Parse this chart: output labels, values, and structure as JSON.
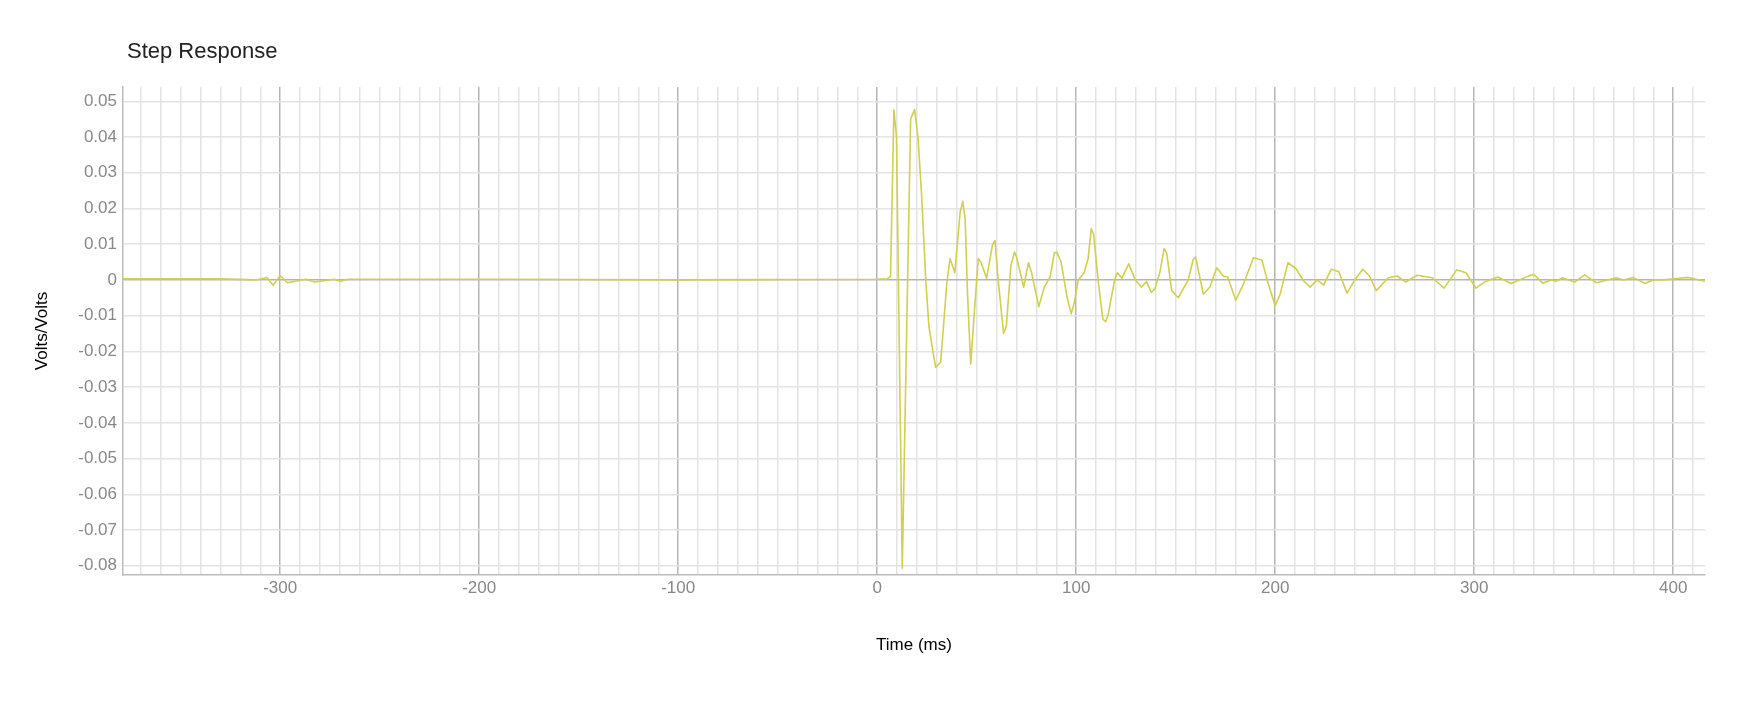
{
  "chart_data": {
    "type": "line",
    "title": "Step Response",
    "xlabel": "Time (ms)",
    "ylabel": "Volts/Volts",
    "xlim": [
      -379,
      416
    ],
    "ylim": [
      -0.0826,
      0.054
    ],
    "xticks": [
      {
        "value": -370,
        "label": null
      },
      {
        "value": -360,
        "label": null
      },
      {
        "value": -350,
        "label": null
      },
      {
        "value": -340,
        "label": null
      },
      {
        "value": -330,
        "label": null
      },
      {
        "value": -320,
        "label": null
      },
      {
        "value": -310,
        "label": null
      },
      -300,
      {
        "value": -290,
        "label": null
      },
      {
        "value": -280,
        "label": null
      },
      {
        "value": -270,
        "label": null
      },
      {
        "value": -260,
        "label": null
      },
      {
        "value": -250,
        "label": null
      },
      {
        "value": -240,
        "label": null
      },
      {
        "value": -230,
        "label": null
      },
      {
        "value": -220,
        "label": null
      },
      {
        "value": -210,
        "label": null
      },
      -200,
      {
        "value": -190,
        "label": null
      },
      {
        "value": -180,
        "label": null
      },
      {
        "value": -170,
        "label": null
      },
      {
        "value": -160,
        "label": null
      },
      {
        "value": -150,
        "label": null
      },
      {
        "value": -140,
        "label": null
      },
      {
        "value": -130,
        "label": null
      },
      {
        "value": -120,
        "label": null
      },
      {
        "value": -110,
        "label": null
      },
      -100,
      {
        "value": -90,
        "label": null
      },
      {
        "value": -80,
        "label": null
      },
      {
        "value": -70,
        "label": null
      },
      {
        "value": -60,
        "label": null
      },
      {
        "value": -50,
        "label": null
      },
      {
        "value": -40,
        "label": null
      },
      {
        "value": -30,
        "label": null
      },
      {
        "value": -20,
        "label": null
      },
      {
        "value": -10,
        "label": null
      },
      0,
      {
        "value": 10,
        "label": null
      },
      {
        "value": 20,
        "label": null
      },
      {
        "value": 30,
        "label": null
      },
      {
        "value": 40,
        "label": null
      },
      {
        "value": 50,
        "label": null
      },
      {
        "value": 60,
        "label": null
      },
      {
        "value": 70,
        "label": null
      },
      {
        "value": 80,
        "label": null
      },
      {
        "value": 90,
        "label": null
      },
      100,
      {
        "value": 110,
        "label": null
      },
      {
        "value": 120,
        "label": null
      },
      {
        "value": 130,
        "label": null
      },
      {
        "value": 140,
        "label": null
      },
      {
        "value": 150,
        "label": null
      },
      {
        "value": 160,
        "label": null
      },
      {
        "value": 170,
        "label": null
      },
      {
        "value": 180,
        "label": null
      },
      {
        "value": 190,
        "label": null
      },
      200,
      {
        "value": 210,
        "label": null
      },
      {
        "value": 220,
        "label": null
      },
      {
        "value": 230,
        "label": null
      },
      {
        "value": 240,
        "label": null
      },
      {
        "value": 250,
        "label": null
      },
      {
        "value": 260,
        "label": null
      },
      {
        "value": 270,
        "label": null
      },
      {
        "value": 280,
        "label": null
      },
      {
        "value": 290,
        "label": null
      },
      300,
      {
        "value": 310,
        "label": null
      },
      {
        "value": 320,
        "label": null
      },
      {
        "value": 330,
        "label": null
      },
      {
        "value": 340,
        "label": null
      },
      {
        "value": 350,
        "label": null
      },
      {
        "value": 360,
        "label": null
      },
      {
        "value": 370,
        "label": null
      },
      {
        "value": 380,
        "label": null
      },
      {
        "value": 390,
        "label": null
      },
      400,
      {
        "value": 410,
        "label": null
      }
    ],
    "yticks": [
      -0.08,
      -0.07,
      -0.06,
      -0.05,
      -0.04,
      -0.03,
      -0.02,
      -0.01,
      0,
      0.01,
      0.02,
      0.03,
      0.04,
      0.05
    ],
    "grid": true,
    "legend": false,
    "marker": "none",
    "line_style": "solid",
    "series": [
      {
        "color": "#d0cf4f",
        "x": [
          -379,
          -350,
          -330,
          -312,
          -306.7,
          -303.6,
          -300,
          -296.4,
          -287,
          -282.6,
          -273,
          -269.6,
          -266,
          -250,
          -200,
          -150,
          -100,
          -50,
          0,
          5,
          6.7,
          8.4,
          9.7,
          12.6,
          16.8,
          18.8,
          20.5,
          22.4,
          24.4,
          26,
          27.7,
          29.4,
          31.9,
          35,
          36.6,
          39,
          41.7,
          43,
          44.2,
          45.4,
          47,
          48.7,
          50.8,
          52.1,
          55,
          58,
          59.2,
          60.8,
          63.5,
          64.9,
          67.2,
          69,
          70,
          73.6,
          76,
          77.6,
          81.2,
          84,
          87,
          89,
          90.4,
          92.4,
          95.5,
          97.5,
          99.2,
          101,
          104,
          106,
          107.6,
          108.7,
          111,
          113.4,
          114.8,
          116,
          119.3,
          120.7,
          123,
          126.4,
          129.7,
          132.8,
          135.3,
          137.8,
          139.5,
          142,
          144.2,
          145.5,
          148,
          151.3,
          154.6,
          156.3,
          158.8,
          160,
          163.9,
          167.2,
          170.6,
          174,
          176.1,
          180.2,
          184,
          189.1,
          193.3,
          196.6,
          200,
          202.5,
          206.4,
          210.4,
          214.3,
          217.7,
          221,
          224.4,
          228.2,
          232,
          236.1,
          240,
          244,
          247.4,
          250.8,
          256.8,
          261.3,
          265.5,
          271.4,
          279,
          284.9,
          291.2,
          295.9,
          300.9,
          305.1,
          311.8,
          318.6,
          324.4,
          329.8,
          334.5,
          338.7,
          341.2,
          344.3,
          350.5,
          355.5,
          361.4,
          371.5,
          374.9,
          379.9,
          385.8,
          390,
          395,
          401.8,
          407.6,
          416
        ],
        "values": [
          0.0003,
          0.0003,
          0.0003,
          0,
          0.0007,
          -0.0015,
          0.0012,
          -0.0008,
          0.0002,
          -0.0006,
          0.0002,
          -0.0004,
          0.0002,
          0.0002,
          0.0002,
          0.0001,
          0,
          0.0001,
          0.0002,
          0.0003,
          0.001,
          0.0476,
          0.04,
          -0.0807,
          0.045,
          0.0477,
          0.04,
          0.023,
          0,
          -0.013,
          -0.019,
          -0.0245,
          -0.023,
          -0.001,
          0.006,
          0.002,
          0.019,
          0.022,
          0.017,
          -0.004,
          -0.0236,
          -0.01,
          0.006,
          0.005,
          0.0005,
          0.01,
          0.011,
          0,
          -0.015,
          -0.013,
          0.004,
          0.0078,
          0.0065,
          -0.002,
          0.0048,
          0.002,
          -0.0075,
          -0.002,
          0.001,
          0.0076,
          0.0077,
          0.005,
          -0.005,
          -0.0095,
          -0.006,
          0,
          0.002,
          0.006,
          0.0143,
          0.013,
          0,
          -0.011,
          -0.0117,
          -0.01,
          0,
          0.002,
          0.0005,
          0.0045,
          0,
          -0.002,
          -0.0005,
          -0.0035,
          -0.0025,
          0.002,
          0.0088,
          0.0075,
          -0.003,
          -0.005,
          -0.0017,
          0,
          0.0057,
          0.0064,
          -0.004,
          -0.002,
          0.0034,
          0.001,
          0.0009,
          -0.0057,
          -0.0012,
          0.0062,
          0.0056,
          -0.0012,
          -0.0072,
          -0.004,
          0.0048,
          0.0032,
          -0.0003,
          -0.002,
          0,
          -0.0014,
          0.003,
          0.0023,
          -0.0037,
          0,
          0.003,
          0.0011,
          -0.003,
          0.0006,
          0.0011,
          -0.0006,
          0.0013,
          0.0006,
          -0.0023,
          0.0028,
          0.002,
          -0.0023,
          -0.0006,
          0.0008,
          -0.001,
          0.0004,
          0.0016,
          -0.0009,
          0,
          -0.0004,
          0.0006,
          -0.0006,
          0.0014,
          -0.0008,
          0.0006,
          0,
          0.0007,
          -0.001,
          0,
          0,
          0.0004,
          0.0007,
          -0.0004
        ]
      }
    ]
  }
}
